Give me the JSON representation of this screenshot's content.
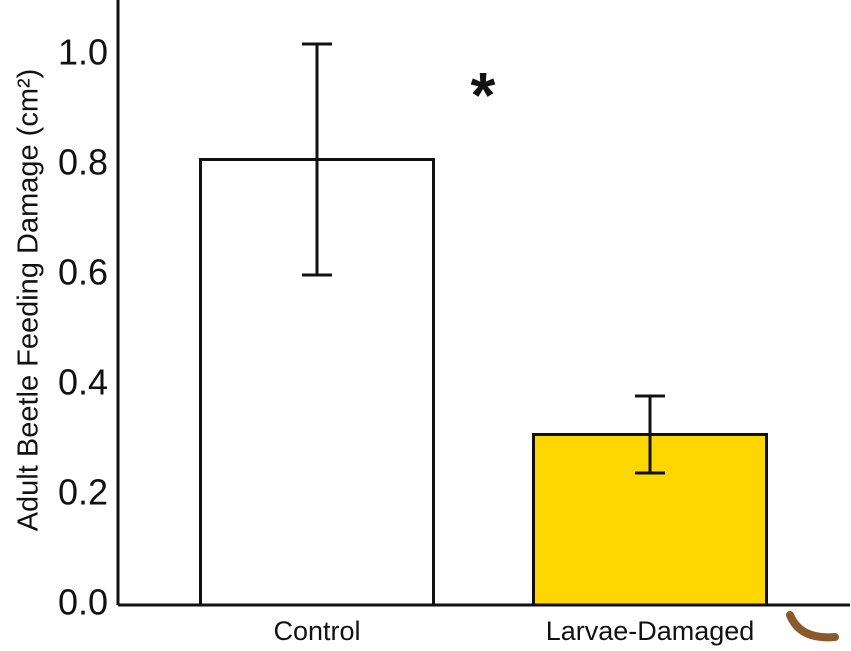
{
  "chart_data": {
    "type": "bar",
    "y_label": "Adult Beetle Feeding Damage (cm²)",
    "categories": [
      "Control",
      "Larvae-Damaged"
    ],
    "values": [
      0.81,
      0.31
    ],
    "errors": [
      0.21,
      0.07
    ],
    "colors": [
      "#ffffff",
      "#ffd700"
    ],
    "annotation": "*",
    "ylim": [
      0,
      1.1
    ],
    "yticks": [
      {
        "value": 0,
        "label": "0.0"
      },
      0.2,
      0.4,
      0.6,
      0.8,
      {
        "value": 1,
        "label": "1.0"
      }
    ],
    "grid": false
  }
}
